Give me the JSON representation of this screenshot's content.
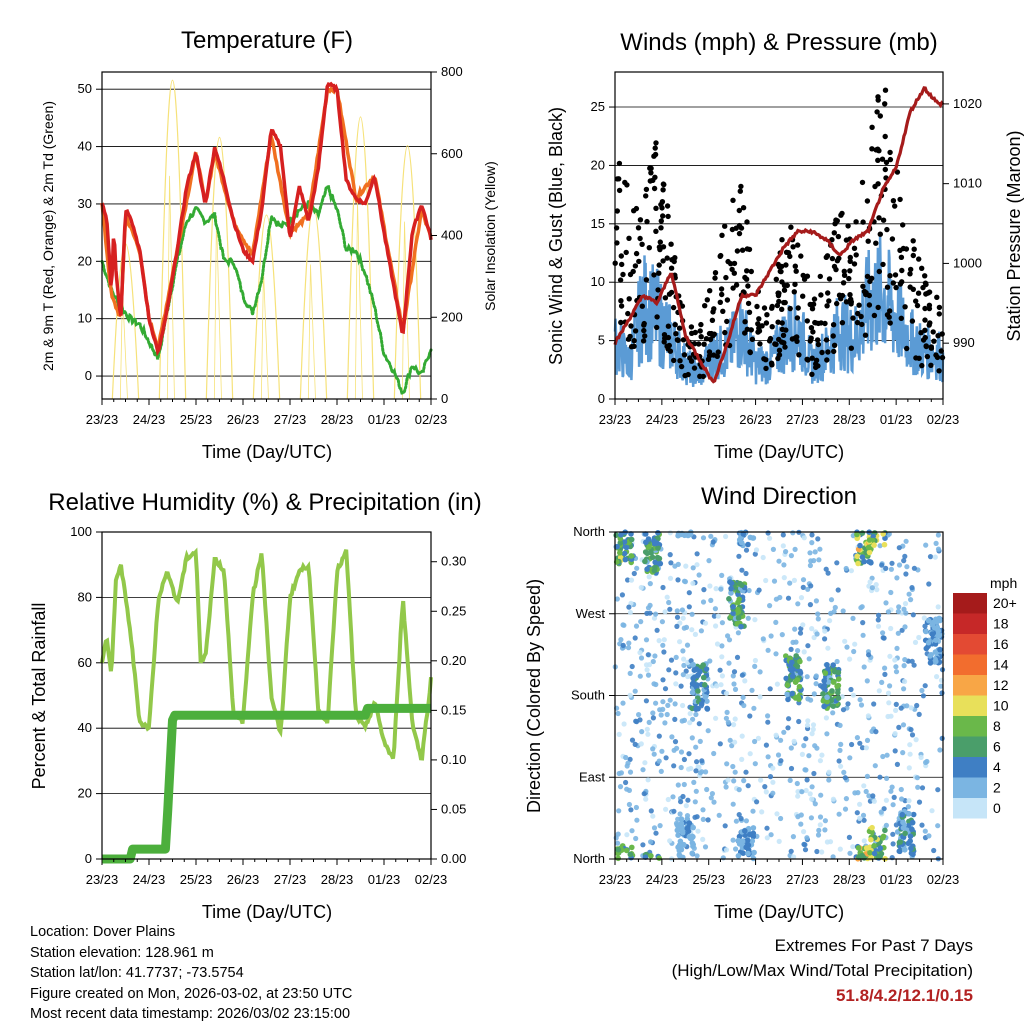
{
  "x_ticks": [
    "23/23",
    "24/23",
    "25/23",
    "26/23",
    "27/23",
    "28/23",
    "01/23",
    "02/23"
  ],
  "x_label": "Time (Day/UTC)",
  "chart_data": [
    {
      "id": "temperature",
      "type": "line",
      "title": "Temperature (F)",
      "ylabel_left": "2m & 9m T (Red, Orange) & 2m Td (Green)",
      "ylabel_right": "Solar Insolation (Yellow)",
      "ylim_left": [
        -4,
        53
      ],
      "ylim_right": [
        0,
        800
      ],
      "yticks_left": [
        "0",
        "10",
        "20",
        "30",
        "40",
        "50"
      ],
      "yticks_right": [
        "0",
        "200",
        "400",
        "600",
        "800"
      ],
      "series": [
        {
          "name": "2m T",
          "color": "#d62020",
          "x": [
            0,
            0.05,
            0.1,
            0.15,
            0.2,
            0.25,
            0.3,
            0.4,
            0.5,
            0.6,
            0.8,
            1.0,
            1.2,
            1.4,
            1.6,
            1.8,
            2.0,
            2.1,
            2.2,
            2.4,
            2.6,
            2.8,
            3.0,
            3.2,
            3.4,
            3.6,
            3.8,
            4.0,
            4.2,
            4.4,
            4.6,
            4.8,
            5.0,
            5.2,
            5.4,
            5.6,
            5.8,
            6.0,
            6.2,
            6.4,
            6.6,
            6.8,
            7.0
          ],
          "values": [
            30,
            29,
            27,
            22,
            14,
            26,
            18,
            10,
            29,
            28,
            22,
            10,
            4,
            12,
            22,
            33,
            39,
            34,
            30,
            40,
            34,
            27,
            22,
            20,
            29,
            43,
            40,
            24,
            33,
            27,
            36,
            51,
            50,
            34,
            31,
            30,
            35,
            25,
            16,
            7,
            25,
            30,
            24
          ]
        },
        {
          "name": "9m T",
          "color": "#f07020",
          "x": [
            0,
            0.2,
            0.4,
            0.5,
            0.8,
            1.0,
            1.2,
            1.6,
            2.0,
            2.2,
            2.4,
            2.8,
            3.2,
            3.6,
            4.0,
            4.4,
            4.8,
            5.0,
            5.4,
            5.8,
            6.2,
            6.4,
            6.8,
            7.0
          ],
          "values": [
            30,
            14,
            10,
            28,
            22,
            10,
            5,
            22,
            39,
            30,
            39,
            27,
            21,
            42,
            25,
            28,
            50,
            50,
            31,
            35,
            17,
            8,
            29,
            24
          ]
        },
        {
          "name": "2m Td",
          "color": "#33aa33",
          "x": [
            0,
            0.2,
            0.4,
            0.6,
            0.8,
            1.0,
            1.2,
            1.4,
            1.6,
            1.8,
            2.0,
            2.2,
            2.4,
            2.6,
            2.8,
            3.0,
            3.2,
            3.4,
            3.6,
            3.8,
            4.0,
            4.2,
            4.4,
            4.6,
            4.8,
            5.0,
            5.2,
            5.4,
            5.6,
            5.8,
            6.0,
            6.2,
            6.4,
            6.6,
            6.8,
            7.0
          ],
          "values": [
            20,
            15,
            12,
            10,
            9,
            6,
            3,
            12,
            20,
            27,
            29,
            27,
            28,
            20,
            20,
            14,
            11,
            17,
            28,
            26,
            27,
            29,
            30,
            28,
            33,
            29,
            22,
            22,
            18,
            12,
            4,
            1,
            -3,
            2,
            0,
            5
          ]
        },
        {
          "name": "Solar Insolation",
          "color": "#f6e27a",
          "axis": "right",
          "x": [
            0.5,
            1.5,
            2.5,
            3.5,
            4.5,
            5.5,
            6.5
          ],
          "values": [
            380,
            780,
            640,
            450,
            470,
            690,
            620
          ]
        }
      ]
    },
    {
      "id": "winds",
      "type": "scatter",
      "title": "Winds (mph) & Pressure (mb)",
      "ylabel_left": "Sonic Wind & Gust (Blue, Black)",
      "ylabel_right": "Station Pressure (Maroon)",
      "ylim_left": [
        0,
        28
      ],
      "ylim_right": [
        983,
        1024
      ],
      "yticks_left": [
        "0",
        "5",
        "10",
        "15",
        "20",
        "25"
      ],
      "yticks_right": [
        "990",
        "1000",
        "1010",
        "1020"
      ],
      "series": [
        {
          "name": "Pressure",
          "color": "#a51b1b",
          "axis": "right",
          "x": [
            0,
            0.3,
            0.6,
            0.9,
            1.2,
            1.5,
            1.8,
            2.1,
            2.4,
            2.7,
            3.0,
            3.3,
            3.6,
            3.9,
            4.2,
            4.5,
            4.8,
            5.1,
            5.4,
            5.7,
            6.0,
            6.3,
            6.6,
            6.9,
            7.0
          ],
          "values": [
            990,
            993,
            996,
            995,
            999,
            991,
            988,
            985,
            990,
            996,
            996,
            999,
            1002,
            1004,
            1004,
            1003,
            1001,
            1003,
            1004,
            1009,
            1012,
            1019,
            1022,
            1020,
            1020
          ]
        },
        {
          "name": "Sonic Wind",
          "color": "#5b9bd5",
          "x": [
            0,
            0.3,
            0.6,
            0.9,
            1.2,
            1.5,
            1.8,
            2.1,
            2.4,
            2.7,
            3.0,
            3.3,
            3.6,
            3.9,
            4.2,
            4.5,
            4.8,
            5.1,
            5.4,
            5.7,
            6.0,
            6.3,
            6.6,
            6.9,
            7.0
          ],
          "values": [
            5,
            3,
            8,
            7,
            5,
            3,
            2,
            4,
            4,
            6,
            3,
            3,
            5,
            6,
            3,
            4,
            6,
            5,
            8,
            9,
            7,
            5,
            4,
            4,
            3
          ]
        },
        {
          "name": "Gust",
          "color": "#000000",
          "x": [
            0,
            0.3,
            0.6,
            0.9,
            1.2,
            1.5,
            1.8,
            2.1,
            2.4,
            2.7,
            3.0,
            3.3,
            3.6,
            3.9,
            4.2,
            4.5,
            4.8,
            5.1,
            5.4,
            5.7,
            6.0,
            6.3,
            6.6,
            6.9,
            7.0
          ],
          "values": [
            20,
            15,
            14,
            20,
            12,
            6,
            5,
            10,
            14,
            16,
            8,
            7,
            12,
            13,
            7,
            10,
            14,
            12,
            18,
            24,
            17,
            12,
            9,
            8,
            7
          ]
        }
      ]
    },
    {
      "id": "humidity",
      "type": "line",
      "title": "Relative Humidity (%) & Precipitation (in)",
      "ylabel_left": "Percent & Total Rainfall",
      "ylim_left": [
        0,
        100
      ],
      "ylim_right": [
        0,
        0.33
      ],
      "yticks_left": [
        "0",
        "20",
        "40",
        "60",
        "80",
        "100"
      ],
      "yticks_right": [
        "0.00",
        "0.05",
        "0.10",
        "0.15",
        "0.20",
        "0.25",
        "0.30"
      ],
      "series": [
        {
          "name": "Relative Humidity",
          "color": "#92c84a",
          "x": [
            0,
            0.1,
            0.2,
            0.3,
            0.4,
            0.6,
            0.8,
            1.0,
            1.2,
            1.4,
            1.6,
            1.8,
            2.0,
            2.1,
            2.2,
            2.4,
            2.6,
            2.8,
            3.0,
            3.2,
            3.4,
            3.6,
            3.8,
            4.0,
            4.2,
            4.4,
            4.6,
            4.8,
            5.0,
            5.2,
            5.4,
            5.6,
            5.8,
            6.0,
            6.2,
            6.4,
            6.6,
            6.8,
            7.0
          ],
          "values": [
            60,
            68,
            56,
            86,
            90,
            70,
            42,
            40,
            80,
            88,
            78,
            92,
            94,
            60,
            62,
            92,
            88,
            44,
            42,
            80,
            94,
            50,
            38,
            80,
            88,
            90,
            45,
            42,
            88,
            94,
            44,
            40,
            48,
            36,
            30,
            80,
            42,
            30,
            55
          ]
        },
        {
          "name": "Total Precipitation",
          "color": "#4caf3c",
          "axis": "right",
          "x": [
            0,
            0.6,
            0.65,
            1.35,
            1.4,
            1.5,
            1.55,
            5.6,
            5.65,
            7.0
          ],
          "values": [
            0.0,
            0.0,
            0.01,
            0.01,
            0.05,
            0.14,
            0.145,
            0.145,
            0.152,
            0.152
          ]
        }
      ]
    },
    {
      "id": "wind_direction",
      "type": "scatter",
      "title": "Wind Direction",
      "ylabel_left": "Direction (Colored By Speed)",
      "yticks_left": [
        "North",
        "East",
        "South",
        "West",
        "North"
      ],
      "legend_title": "mph",
      "legend_labels": [
        "20+",
        "18",
        "16",
        "14",
        "12",
        "10",
        "8",
        "6",
        "4",
        "2",
        "0"
      ],
      "legend_colors": [
        "#a51b1b",
        "#c62828",
        "#e34a33",
        "#f26d2e",
        "#f8a646",
        "#e8e05a",
        "#6ab84a",
        "#4a9e6a",
        "#3f7fc4",
        "#7bb5e2",
        "#c6e5f8"
      ],
      "clusters": [
        {
          "x": 0.2,
          "dir": 350,
          "speed": 8
        },
        {
          "x": 0.8,
          "dir": 340,
          "speed": 7
        },
        {
          "x": 1.5,
          "dir": 20,
          "speed": 3
        },
        {
          "x": 1.8,
          "dir": 190,
          "speed": 5
        },
        {
          "x": 2.6,
          "dir": 280,
          "speed": 7
        },
        {
          "x": 2.8,
          "dir": 10,
          "speed": 4
        },
        {
          "x": 3.8,
          "dir": 200,
          "speed": 7
        },
        {
          "x": 4.6,
          "dir": 190,
          "speed": 7
        },
        {
          "x": 5.3,
          "dir": 350,
          "speed": 10
        },
        {
          "x": 5.6,
          "dir": 10,
          "speed": 9
        },
        {
          "x": 6.2,
          "dir": 30,
          "speed": 5
        },
        {
          "x": 6.8,
          "dir": 240,
          "speed": 4
        }
      ]
    }
  ],
  "meta": {
    "location": "Location: Dover Plains",
    "elevation": "Station elevation: 128.961 m",
    "latlon": "Station lat/lon: 41.7737; -73.5754",
    "created": "Figure created on Mon, 2026-03-02, at 23:50 UTC",
    "recent": "Most recent data timestamp: 2026/03/02 23:15:00"
  },
  "extremes": {
    "line1": "Extremes For Past 7 Days",
    "line2": "(High/Low/Max Wind/Total Precipitation)",
    "value": "51.8/4.2/12.1/0.15"
  }
}
